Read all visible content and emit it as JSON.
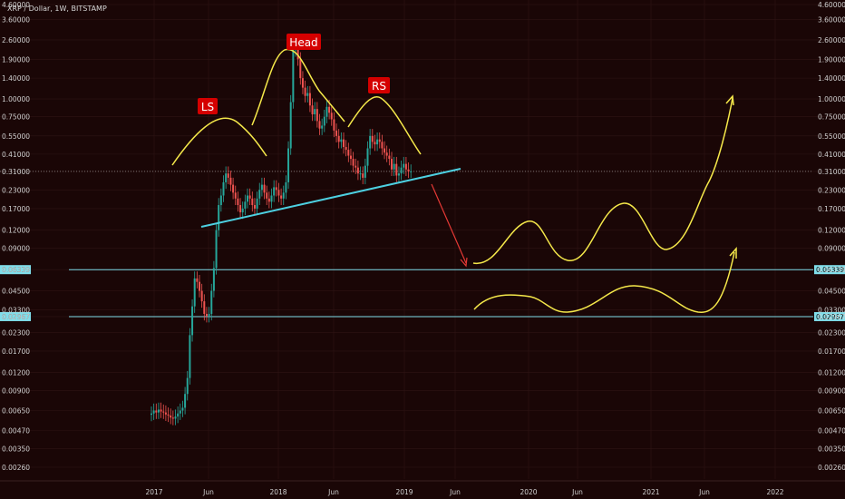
{
  "title": "XRP / Dollar, 1W, BITSTAMP",
  "colors": {
    "background": "#1a0606",
    "grid": "#2e1414",
    "up_candle": "#26a69a",
    "down_candle": "#ef5350",
    "neckline": "#4dd0e1",
    "level_line": "#80deea",
    "curve": "#f5e84a",
    "arrow": "#e53935",
    "label_bg": "#d50000"
  },
  "chart_data": {
    "type": "candlestick",
    "y_scale": "log",
    "y_ticks": [
      "4.60000",
      "3.60000",
      "2.60000",
      "1.90000",
      "1.40000",
      "1.00000",
      "0.75000",
      "0.55000",
      "0.41000",
      "0.31000",
      "0.23000",
      "0.17000",
      "0.12000",
      "0.09000",
      "0.06339",
      "0.04500",
      "0.03300",
      "0.02967",
      "0.02300",
      "0.01700",
      "0.01200",
      "0.00900",
      "0.00650",
      "0.00470",
      "0.00350",
      "0.00260"
    ],
    "x_ticks": [
      "2017",
      "Jun",
      "2018",
      "Jun",
      "2019",
      "Jun",
      "2020",
      "Jun",
      "2021",
      "Jun",
      "2022"
    ],
    "current_price": 0.31,
    "horizontal_levels": [
      "0.06339",
      "0.02967"
    ],
    "annotations": [
      "LS",
      "Head",
      "RS"
    ],
    "candles_close": [
      0.0062,
      0.0065,
      0.0063,
      0.0066,
      0.0064,
      0.0063,
      0.0061,
      0.006,
      0.0058,
      0.0057,
      0.0059,
      0.0062,
      0.0065,
      0.0068,
      0.0085,
      0.011,
      0.022,
      0.035,
      0.055,
      0.052,
      0.045,
      0.038,
      0.031,
      0.03,
      0.031,
      0.045,
      0.065,
      0.12,
      0.18,
      0.21,
      0.26,
      0.3,
      0.28,
      0.25,
      0.22,
      0.2,
      0.18,
      0.16,
      0.17,
      0.19,
      0.21,
      0.2,
      0.18,
      0.17,
      0.2,
      0.23,
      0.25,
      0.22,
      0.2,
      0.19,
      0.21,
      0.24,
      0.23,
      0.21,
      0.2,
      0.22,
      0.26,
      0.45,
      0.95,
      2.2,
      2.4,
      1.9,
      1.4,
      1.2,
      1.05,
      1.1,
      0.9,
      0.78,
      0.85,
      0.7,
      0.62,
      0.65,
      0.75,
      0.88,
      0.8,
      0.72,
      0.6,
      0.55,
      0.5,
      0.52,
      0.46,
      0.44,
      0.4,
      0.38,
      0.34,
      0.33,
      0.3,
      0.3,
      0.28,
      0.34,
      0.45,
      0.55,
      0.5,
      0.48,
      0.52,
      0.5,
      0.45,
      0.42,
      0.4,
      0.38,
      0.32,
      0.35,
      0.29,
      0.3,
      0.33,
      0.35,
      0.32,
      0.31,
      0.31
    ]
  }
}
